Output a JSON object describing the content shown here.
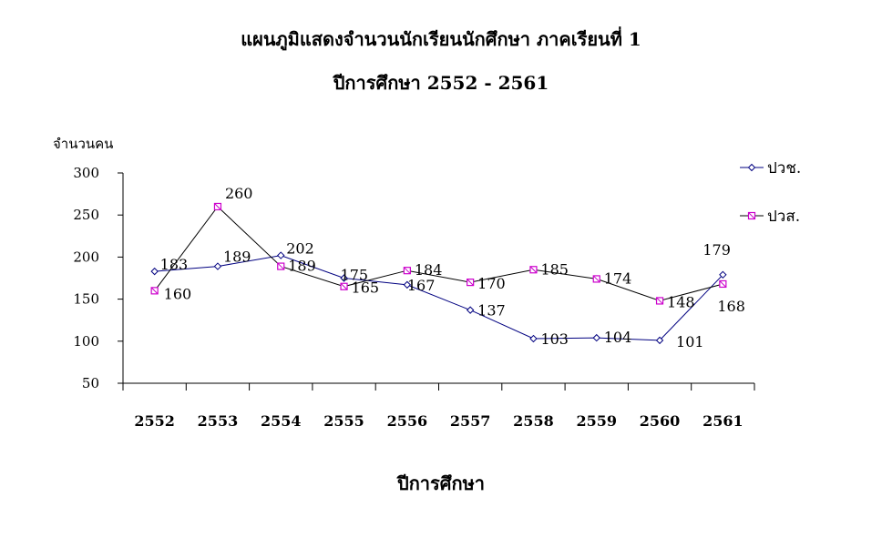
{
  "chart_data": {
    "type": "line",
    "title": "แผนภูมิแสดงจำนวนนักเรียนนักศึกษา ภาคเรียนที่ 1",
    "subtitle": "ปีการศึกษา 2552 - 2561",
    "xlabel": "ปีการศึกษา",
    "ylabel": "จำนวนคน",
    "ylim": [
      50,
      300
    ],
    "yticks": [
      "50",
      "100",
      "150",
      "200",
      "250",
      "300"
    ],
    "categories": [
      "2552",
      "2553",
      "2554",
      "2555",
      "2556",
      "2557",
      "2558",
      "2559",
      "2560",
      "2561"
    ],
    "grid": false,
    "legend_position": "right",
    "series": [
      {
        "name": "ปวช.",
        "values": [
          183,
          189,
          202,
          175,
          167,
          137,
          103,
          104,
          101,
          179
        ],
        "color": "#000080",
        "marker": "diamond"
      },
      {
        "name": "ปวส.",
        "values": [
          160,
          260,
          189,
          165,
          184,
          170,
          185,
          174,
          148,
          168
        ],
        "color": "#000000",
        "marker": "square",
        "marker_color": "#cc00cc"
      }
    ]
  }
}
